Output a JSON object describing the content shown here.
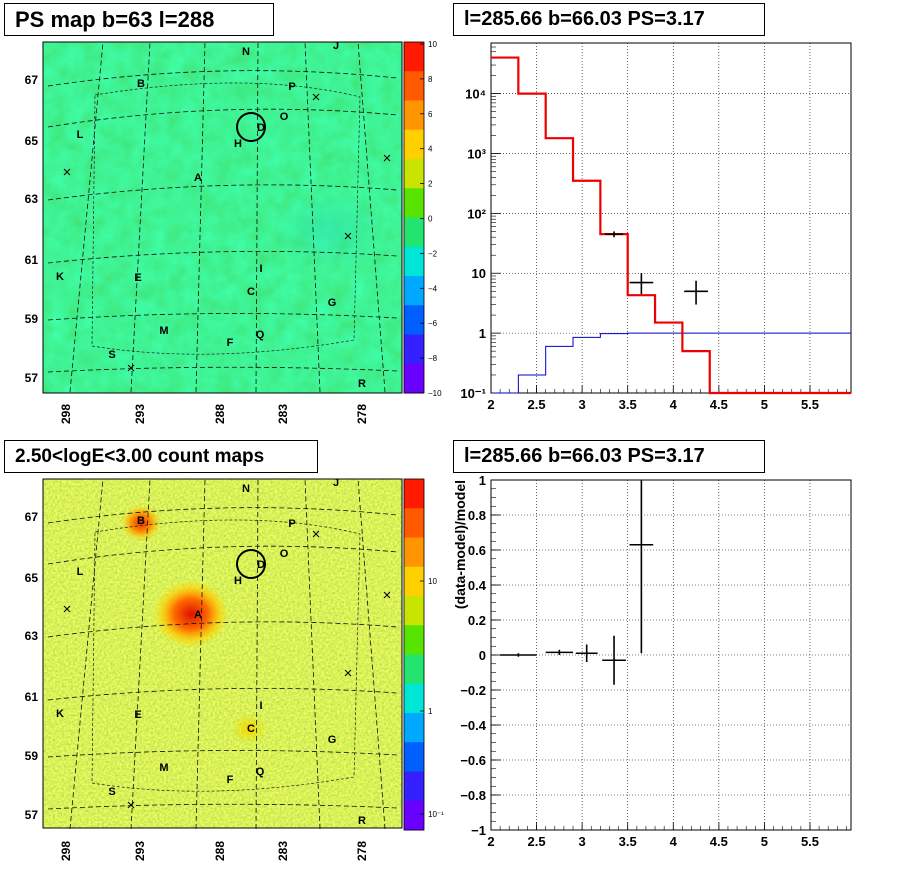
{
  "colors": {
    "map_background": "#2fe23a",
    "histogram_data_red": "#ee0000",
    "histogram_model_blue": "#0000cc",
    "marker_black": "#000000"
  },
  "panels": {
    "ps_map": {
      "title": "PS map b=63 l=288",
      "colorbar_ticks": [
        "10",
        "8",
        "6",
        "4",
        "2",
        "0",
        "−2",
        "−4",
        "−6",
        "−8",
        "−10"
      ],
      "colorbar_colors": [
        "#ff1a00",
        "#ff5a00",
        "#ff9500",
        "#ffd000",
        "#c8e400",
        "#57e400",
        "#22e46e",
        "#00e6d6",
        "#00a8ff",
        "#0060ff",
        "#3520ff",
        "#6a00ff"
      ]
    },
    "count_map": {
      "title": "2.50<logE<3.00 count maps",
      "colorbar_ticks": [
        "10",
        "1",
        "10⁻¹"
      ],
      "colorbar_colors": [
        "#ff1a00",
        "#ff5a00",
        "#ff9500",
        "#ffd000",
        "#c8e400",
        "#57e400",
        "#22e46e",
        "#00e6d6",
        "#00a8ff",
        "#0060ff",
        "#3520ff",
        "#6a00ff"
      ]
    },
    "sky": {
      "lat_ticks": [
        "67",
        "65",
        "63",
        "61",
        "59",
        "57"
      ],
      "lon_ticks": [
        "298",
        "293",
        "288",
        "283",
        "278"
      ],
      "source_labels": [
        "N",
        "J",
        "B",
        "P",
        "O",
        "D",
        "H",
        "L",
        "A",
        "I",
        "K",
        "E",
        "C",
        "G",
        "M",
        "Q",
        "F",
        "S",
        "R"
      ],
      "cross_markers": [
        "x1",
        "x2",
        "x3",
        "x4",
        "x5"
      ]
    }
  },
  "chart_data": [
    {
      "type": "step",
      "title": "l=285.66 b=66.03 PS=3.17",
      "xlabel": "",
      "ylabel": "",
      "log_y": true,
      "xlim": [
        2.0,
        5.95
      ],
      "ylim": [
        0.1,
        70000
      ],
      "x_ticks": [
        "2",
        "2.5",
        "3",
        "3.5",
        "4",
        "4.5",
        "5",
        "5.5"
      ],
      "y_ticks": [
        "10⁻¹",
        "1",
        "10",
        "10²",
        "10³",
        "10⁴"
      ],
      "grid": true,
      "series": [
        {
          "role": "model-red",
          "x_edges": [
            2.0,
            2.3,
            2.6,
            2.9,
            3.2,
            3.5,
            3.8,
            4.1,
            4.4,
            4.7,
            5.0,
            5.3,
            5.6,
            5.95
          ],
          "values": [
            40000,
            10000,
            1800,
            350,
            45,
            4.3,
            1.5,
            0.5,
            0.1,
            0.1,
            0.1,
            0.1,
            0.1
          ]
        },
        {
          "role": "model-blue",
          "x_edges": [
            2.0,
            2.3,
            2.6,
            2.9,
            3.2,
            3.5,
            3.8,
            4.1,
            4.4,
            4.7,
            5.0,
            5.3,
            5.6,
            5.95
          ],
          "values": [
            0.1,
            0.2,
            0.6,
            0.85,
            0.98,
            1.0,
            1.0,
            1.0,
            1.0,
            1.0,
            1.0,
            1.0,
            1.0
          ]
        },
        {
          "role": "data-points",
          "points": [
            {
              "x": 3.35,
              "y": 45,
              "xerr": 0.1,
              "ylo": 40,
              "yhi": 50
            },
            {
              "x": 3.65,
              "y": 7,
              "xerr": 0.13,
              "ylo": 4.5,
              "yhi": 10
            },
            {
              "x": 4.25,
              "y": 5,
              "xerr": 0.13,
              "ylo": 3.0,
              "yhi": 7.5
            }
          ]
        }
      ]
    },
    {
      "type": "scatter",
      "title": "l=285.66 b=66.03 PS=3.17",
      "xlabel": "",
      "ylabel": "(data-model)/model",
      "xlim": [
        2.0,
        5.95
      ],
      "ylim": [
        -1.0,
        1.0
      ],
      "x_ticks": [
        "2",
        "2.5",
        "3",
        "3.5",
        "4",
        "4.5",
        "5",
        "5.5"
      ],
      "y_ticks": [
        "−1",
        "−0.8",
        "−0.6",
        "−0.4",
        "−0.2",
        "0",
        "0.2",
        "0.4",
        "0.6",
        "0.8",
        "1"
      ],
      "grid": true,
      "points": [
        {
          "x": 2.3,
          "y": 0.0,
          "xerr": 0.2,
          "ylo": -0.01,
          "yhi": 0.01
        },
        {
          "x": 2.75,
          "y": 0.015,
          "xerr": 0.15,
          "ylo": 0.0,
          "yhi": 0.03
        },
        {
          "x": 3.05,
          "y": 0.01,
          "xerr": 0.12,
          "ylo": -0.04,
          "yhi": 0.06
        },
        {
          "x": 3.35,
          "y": -0.03,
          "xerr": 0.13,
          "ylo": -0.17,
          "yhi": 0.11
        },
        {
          "x": 3.65,
          "y": 0.63,
          "xerr": 0.13,
          "ylo": 0.01,
          "yhi": 1.0
        }
      ]
    }
  ]
}
